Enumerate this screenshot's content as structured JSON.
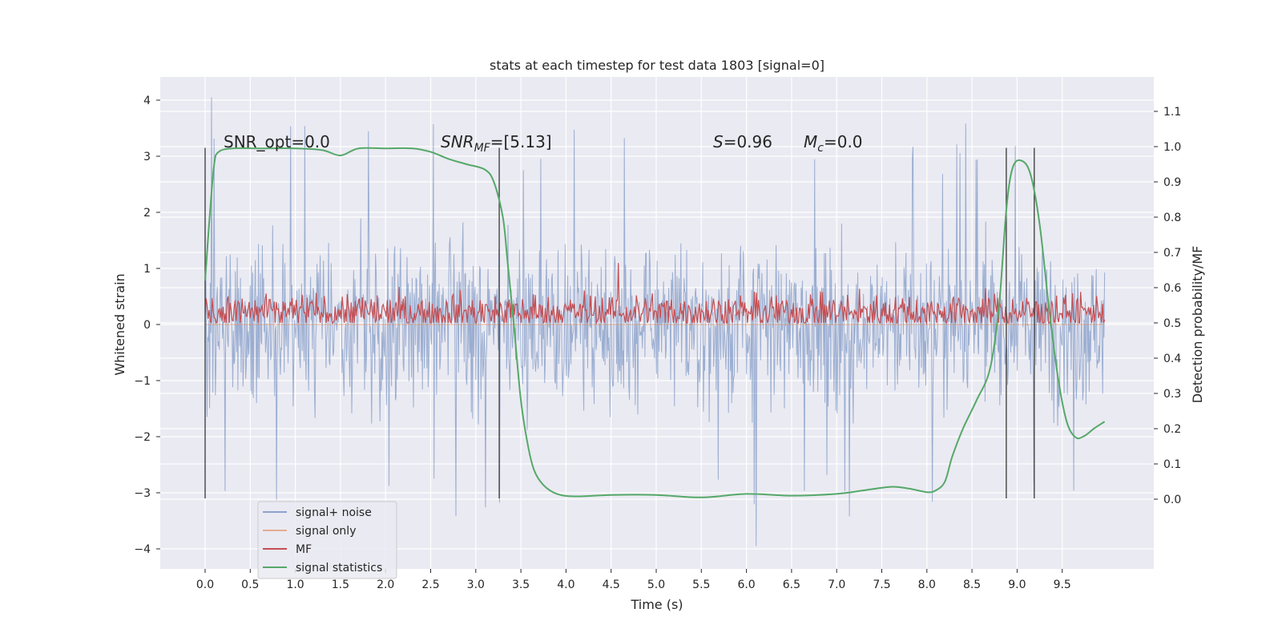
{
  "chart_data": {
    "type": "line",
    "title": "stats at each timestep for test data 1803 [signal=0]",
    "xlabel": "Time (s)",
    "ylabel": "Whitened strain",
    "ylabel_right": "Detection probability/MF",
    "xlim": [
      -0.5,
      10.5
    ],
    "ylim": [
      -4.4,
      4.4
    ],
    "ylim_right": [
      -0.195,
      1.195
    ],
    "x_ticks": [
      "0.0",
      "0.5",
      "1.0",
      "1.5",
      "2.0",
      "2.5",
      "3.0",
      "3.5",
      "4.0",
      "4.5",
      "5.0",
      "5.5",
      "6.0",
      "6.5",
      "7.0",
      "7.5",
      "8.0",
      "8.5",
      "9.0",
      "9.5"
    ],
    "y_ticks": [
      "4",
      "3",
      "2",
      "1",
      "0",
      "−1",
      "−2",
      "−3",
      "−4"
    ],
    "y_ticks_right": [
      "0.0",
      "0.1",
      "0.2",
      "0.3",
      "0.4",
      "0.5",
      "0.6",
      "0.7",
      "0.8",
      "0.9",
      "1.0",
      "1.1"
    ],
    "grid": true,
    "legend_position": "lower-left",
    "annotations": {
      "snr_opt": "SNR_opt=0.0",
      "snr_mf_label": "SNR",
      "snr_mf_sub": "MF",
      "snr_mf_value": "=[5.13]",
      "s_label": "S",
      "s_value": "=0.96",
      "mc_label": "M",
      "mc_sub": "c",
      "mc_value": "=0.0"
    },
    "vertical_lines_x": [
      0.0,
      3.26,
      8.88,
      9.19
    ],
    "vertical_lines_range": [
      -3.1,
      3.15
    ],
    "series": [
      {
        "name": "signal+ noise",
        "color": "#4c72b0",
        "style": "dense-noise",
        "x_range": [
          0.0,
          9.97
        ],
        "envelope_std": 1.15,
        "peak_max": 4.05,
        "peak_min": -3.95
      },
      {
        "name": "signal only",
        "color": "#dd8452",
        "values_constant": 0.0
      },
      {
        "name": "MF",
        "color": "#c44e52",
        "axis": "right",
        "x_range": [
          0.0,
          9.97
        ],
        "baseline": 0.53,
        "spread": 0.045,
        "peak": 0.67
      },
      {
        "name": "signal statistics",
        "color": "#55a868",
        "axis": "right",
        "x": [
          0.0,
          0.05,
          0.1,
          0.15,
          0.3,
          0.6,
          1.0,
          1.3,
          1.5,
          1.7,
          2.0,
          2.3,
          2.5,
          2.7,
          2.9,
          3.1,
          3.2,
          3.3,
          3.35,
          3.42,
          3.5,
          3.58,
          3.65,
          3.75,
          3.9,
          4.1,
          4.5,
          5.0,
          5.5,
          6.0,
          6.5,
          7.0,
          7.3,
          7.6,
          7.8,
          8.0,
          8.1,
          8.2,
          8.28,
          8.4,
          8.55,
          8.7,
          8.8,
          8.88,
          8.95,
          9.05,
          9.15,
          9.25,
          9.35,
          9.45,
          9.55,
          9.65,
          9.75,
          9.85,
          9.97
        ],
        "values": [
          0.62,
          0.8,
          0.95,
          0.985,
          0.995,
          0.995,
          0.995,
          0.99,
          0.975,
          0.995,
          0.995,
          0.995,
          0.985,
          0.965,
          0.95,
          0.935,
          0.9,
          0.8,
          0.68,
          0.5,
          0.28,
          0.15,
          0.08,
          0.04,
          0.015,
          0.008,
          0.012,
          0.012,
          0.005,
          0.015,
          0.01,
          0.015,
          0.025,
          0.035,
          0.03,
          0.02,
          0.025,
          0.05,
          0.12,
          0.2,
          0.28,
          0.37,
          0.55,
          0.82,
          0.94,
          0.96,
          0.92,
          0.78,
          0.55,
          0.35,
          0.22,
          0.175,
          0.18,
          0.2,
          0.22
        ]
      }
    ]
  }
}
